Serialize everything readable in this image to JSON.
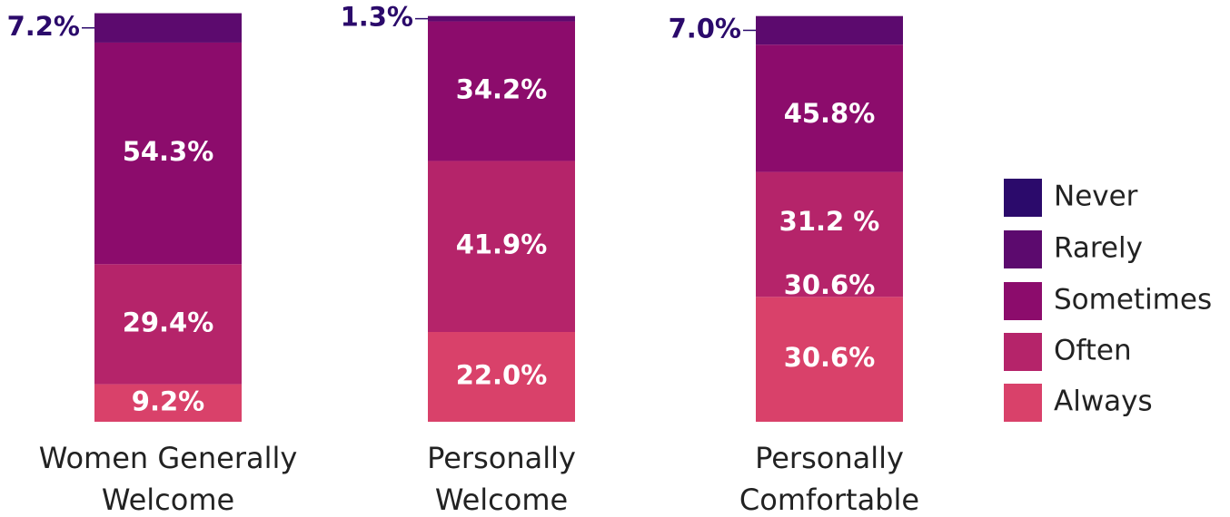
{
  "chart_data": {
    "type": "stacked_bar",
    "categories": [
      "Women Generally\nWelcome",
      "Personally\nWelcome",
      "Personally\nComfortable"
    ],
    "ylim": [
      0,
      100
    ],
    "series": [
      {
        "name": "Always",
        "color": "#d9416a",
        "values": [
          9.2,
          22.0,
          30.6
        ],
        "value_labels": [
          "9.2%",
          "22.0%",
          "30.6%"
        ]
      },
      {
        "name": "Often",
        "color": "#b5246a",
        "values": [
          29.4,
          41.9,
          30.6
        ],
        "value_labels": [
          "29.4%",
          "41.9%",
          "30.6%"
        ]
      },
      {
        "name": "Sometimes",
        "color": "#8c0c6c",
        "values": [
          54.3,
          34.2,
          31.2
        ],
        "value_labels": [
          "54.3%",
          "34.2%",
          "31.2  %"
        ]
      },
      {
        "name": "Rarely",
        "color": "#5c0a6e",
        "values": [
          7.2,
          1.3,
          7.0
        ],
        "value_labels": [
          "7.2%",
          "1.3%",
          "7.0%"
        ]
      },
      {
        "name": "Never",
        "color": "#2b0a6b",
        "values": [
          0,
          0,
          0
        ]
      }
    ],
    "annotations": [
      "45.8%"
    ]
  }
}
